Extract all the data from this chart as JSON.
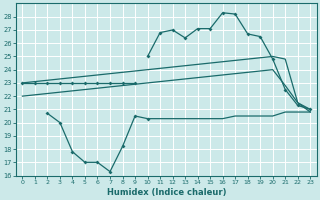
{
  "xlabel": "Humidex (Indice chaleur)",
  "background_color": "#cce9e9",
  "grid_color": "#ffffff",
  "line_color": "#1a6b6b",
  "xlim": [
    -0.5,
    23.5
  ],
  "ylim": [
    16,
    29
  ],
  "yticks": [
    16,
    17,
    18,
    19,
    20,
    21,
    22,
    23,
    24,
    25,
    26,
    27,
    28
  ],
  "xticks": [
    0,
    1,
    2,
    3,
    4,
    5,
    6,
    7,
    8,
    9,
    10,
    11,
    12,
    13,
    14,
    15,
    16,
    17,
    18,
    19,
    20,
    21,
    22,
    23
  ],
  "line1_x": [
    0,
    1,
    2,
    3,
    4,
    5,
    6,
    7,
    8,
    9
  ],
  "line1_y": [
    23,
    23,
    23,
    23,
    23,
    23,
    23,
    23,
    23,
    23
  ],
  "line2_x": [
    2,
    3,
    4,
    5,
    6,
    7,
    8,
    9,
    10
  ],
  "line2_y": [
    20.7,
    20.0,
    17.8,
    17.0,
    17.0,
    16.3,
    18.2,
    20.5,
    20.3
  ],
  "line3_x": [
    10,
    11,
    12,
    13,
    14,
    15,
    16,
    17,
    18,
    19,
    20,
    21,
    22,
    23
  ],
  "line3_y": [
    20.3,
    20.3,
    20.3,
    20.3,
    20.3,
    20.3,
    20.3,
    20.5,
    20.5,
    20.5,
    20.5,
    20.8,
    20.8,
    20.8
  ],
  "line4_x": [
    10,
    11,
    12,
    13,
    14,
    15,
    16,
    17,
    18,
    19,
    20,
    21,
    22,
    23
  ],
  "line4_y": [
    25.0,
    26.8,
    27.0,
    26.4,
    27.1,
    27.1,
    28.3,
    28.2,
    26.7,
    26.5,
    24.8,
    22.5,
    21.3,
    21.0
  ],
  "line5_x": [
    0,
    5,
    10,
    15,
    20,
    21,
    22,
    23
  ],
  "line5_y": [
    23.0,
    23.5,
    24.0,
    24.5,
    25.0,
    24.8,
    21.5,
    21.0
  ],
  "line6_x": [
    0,
    5,
    10,
    15,
    20,
    21,
    22,
    23
  ],
  "line6_y": [
    22.0,
    22.5,
    23.0,
    23.5,
    24.0,
    22.8,
    21.5,
    20.8
  ]
}
